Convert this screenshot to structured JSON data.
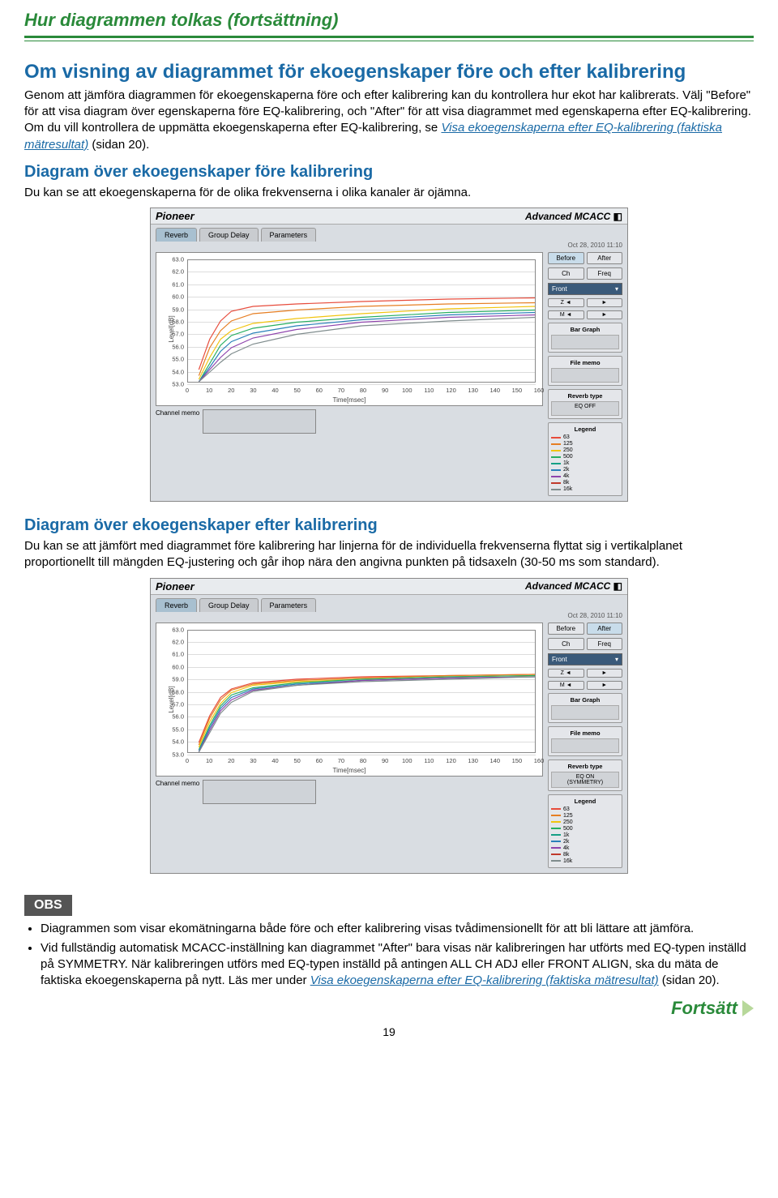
{
  "header": "Hur diagrammen tolkas (fortsättning)",
  "s1": {
    "title": "Om visning av diagrammet för ekoegenskaper före och efter kalibrering",
    "body": "Genom att jämföra diagrammen för ekoegenskaperna före och efter kalibrering kan du kontrollera hur ekot har kalibrerats. Välj \"Before\" för att visa diagram över egenskaperna före EQ-kalibrering, och \"After\" för att visa diagrammet med egenskaperna efter EQ-kalibrering. Om du vill kontrollera de uppmätta ekoegenskaperna efter EQ-kalibrering, se ",
    "link": "Visa ekoegenskaperna efter EQ-kalibrering (faktiska mätresultat)",
    "link_suffix": " (sidan 20)."
  },
  "s2": {
    "title": "Diagram över ekoegenskaper före kalibrering",
    "body": "Du kan se att ekoegenskaperna för de olika frekvenserna i olika kanaler är ojämna."
  },
  "s3": {
    "title": "Diagram över ekoegenskaper efter kalibrering",
    "body": "Du kan se att jämfört med diagrammet före kalibrering har linjerna för de individuella frekvenserna flyttat sig i vertikalplanet proportionellt till mängden EQ-justering och går ihop nära den angivna punkten på tidsaxeln (30-50 ms som standard)."
  },
  "app": {
    "brand": "Pioneer",
    "title_right": "Advanced MCACC",
    "date": "Oct 28, 2010 11:10",
    "tabs": [
      "Reverb",
      "Group Delay",
      "Parameters"
    ],
    "active_tab": 0,
    "buttons": {
      "before": "Before",
      "after": "After",
      "ch": "Ch",
      "freq": "Freq"
    },
    "dropdown": "Front",
    "zoom": {
      "z": "Z",
      "m": "M"
    },
    "bar_graph_label": "Bar Graph",
    "file_memo_label": "File memo",
    "reverb_type_label": "Reverb type",
    "reverb_type_before": "EQ OFF",
    "reverb_type_after": "EQ ON\n(SYMMETRY)",
    "legend_label": "Legend",
    "legend": [
      {
        "label": "63",
        "color": "#e74c3c"
      },
      {
        "label": "125",
        "color": "#e67e22"
      },
      {
        "label": "250",
        "color": "#f1c40f"
      },
      {
        "label": "500",
        "color": "#27ae60"
      },
      {
        "label": "1k",
        "color": "#16a085"
      },
      {
        "label": "2k",
        "color": "#2980b9"
      },
      {
        "label": "4k",
        "color": "#8e44ad"
      },
      {
        "label": "8k",
        "color": "#c0392b"
      },
      {
        "label": "16k",
        "color": "#7f8c8d"
      }
    ],
    "ylabel": "Level[dB]",
    "xlabel": "Time[msec]",
    "yticks": [
      63.0,
      62.0,
      61.0,
      60.0,
      59.0,
      58.0,
      57.0,
      56.0,
      55.0,
      54.0,
      53.0
    ],
    "ylim": [
      53.0,
      63.0
    ],
    "xticks": [
      0,
      10,
      20,
      30,
      40,
      50,
      60,
      70,
      80,
      90,
      100,
      110,
      120,
      130,
      140,
      150,
      160
    ],
    "xlim": [
      0,
      160
    ],
    "channel_memo": "Channel memo",
    "series_before": [
      {
        "color": "#e74c3c",
        "pts": [
          [
            5,
            54
          ],
          [
            10,
            56.5
          ],
          [
            15,
            58.0
          ],
          [
            20,
            58.8
          ],
          [
            30,
            59.2
          ],
          [
            50,
            59.4
          ],
          [
            80,
            59.6
          ],
          [
            120,
            59.8
          ],
          [
            160,
            59.9
          ]
        ]
      },
      {
        "color": "#e67e22",
        "pts": [
          [
            5,
            53.5
          ],
          [
            10,
            55.8
          ],
          [
            15,
            57.2
          ],
          [
            20,
            58.0
          ],
          [
            30,
            58.6
          ],
          [
            50,
            58.9
          ],
          [
            80,
            59.2
          ],
          [
            120,
            59.4
          ],
          [
            160,
            59.5
          ]
        ]
      },
      {
        "color": "#f1c40f",
        "pts": [
          [
            5,
            53.2
          ],
          [
            10,
            55.0
          ],
          [
            15,
            56.5
          ],
          [
            20,
            57.2
          ],
          [
            30,
            57.8
          ],
          [
            50,
            58.2
          ],
          [
            80,
            58.6
          ],
          [
            120,
            59.0
          ],
          [
            160,
            59.2
          ]
        ]
      },
      {
        "color": "#27ae60",
        "pts": [
          [
            5,
            53.0
          ],
          [
            10,
            54.5
          ],
          [
            15,
            56.0
          ],
          [
            20,
            56.8
          ],
          [
            30,
            57.4
          ],
          [
            50,
            57.9
          ],
          [
            80,
            58.3
          ],
          [
            120,
            58.7
          ],
          [
            160,
            58.9
          ]
        ]
      },
      {
        "color": "#2980b9",
        "pts": [
          [
            5,
            53.0
          ],
          [
            10,
            54.2
          ],
          [
            15,
            55.5
          ],
          [
            20,
            56.3
          ],
          [
            30,
            57.0
          ],
          [
            50,
            57.6
          ],
          [
            80,
            58.1
          ],
          [
            120,
            58.5
          ],
          [
            160,
            58.7
          ]
        ]
      },
      {
        "color": "#8e44ad",
        "pts": [
          [
            5,
            53.0
          ],
          [
            10,
            54.0
          ],
          [
            15,
            55.0
          ],
          [
            20,
            55.8
          ],
          [
            30,
            56.6
          ],
          [
            50,
            57.3
          ],
          [
            80,
            57.9
          ],
          [
            120,
            58.3
          ],
          [
            160,
            58.5
          ]
        ]
      },
      {
        "color": "#7f8c8d",
        "pts": [
          [
            5,
            53.0
          ],
          [
            10,
            53.8
          ],
          [
            15,
            54.6
          ],
          [
            20,
            55.3
          ],
          [
            30,
            56.1
          ],
          [
            50,
            56.9
          ],
          [
            80,
            57.6
          ],
          [
            120,
            58.0
          ],
          [
            160,
            58.3
          ]
        ]
      }
    ],
    "series_after": [
      {
        "color": "#e74c3c",
        "pts": [
          [
            5,
            53.8
          ],
          [
            10,
            56.0
          ],
          [
            15,
            57.5
          ],
          [
            20,
            58.2
          ],
          [
            30,
            58.7
          ],
          [
            50,
            59.0
          ],
          [
            80,
            59.2
          ],
          [
            120,
            59.3
          ],
          [
            160,
            59.4
          ]
        ]
      },
      {
        "color": "#e67e22",
        "pts": [
          [
            5,
            53.6
          ],
          [
            10,
            55.8
          ],
          [
            15,
            57.3
          ],
          [
            20,
            58.1
          ],
          [
            30,
            58.6
          ],
          [
            50,
            58.9
          ],
          [
            80,
            59.1
          ],
          [
            120,
            59.3
          ],
          [
            160,
            59.4
          ]
        ]
      },
      {
        "color": "#f1c40f",
        "pts": [
          [
            5,
            53.4
          ],
          [
            10,
            55.5
          ],
          [
            15,
            57.0
          ],
          [
            20,
            57.9
          ],
          [
            30,
            58.5
          ],
          [
            50,
            58.8
          ],
          [
            80,
            59.0
          ],
          [
            120,
            59.2
          ],
          [
            160,
            59.3
          ]
        ]
      },
      {
        "color": "#27ae60",
        "pts": [
          [
            5,
            53.2
          ],
          [
            10,
            55.2
          ],
          [
            15,
            56.8
          ],
          [
            20,
            57.7
          ],
          [
            30,
            58.3
          ],
          [
            50,
            58.7
          ],
          [
            80,
            59.0
          ],
          [
            120,
            59.2
          ],
          [
            160,
            59.3
          ]
        ]
      },
      {
        "color": "#2980b9",
        "pts": [
          [
            5,
            53.1
          ],
          [
            10,
            55.0
          ],
          [
            15,
            56.6
          ],
          [
            20,
            57.5
          ],
          [
            30,
            58.2
          ],
          [
            50,
            58.6
          ],
          [
            80,
            58.9
          ],
          [
            120,
            59.1
          ],
          [
            160,
            59.2
          ]
        ]
      },
      {
        "color": "#8e44ad",
        "pts": [
          [
            5,
            53.0
          ],
          [
            10,
            54.8
          ],
          [
            15,
            56.4
          ],
          [
            20,
            57.3
          ],
          [
            30,
            58.1
          ],
          [
            50,
            58.5
          ],
          [
            80,
            58.9
          ],
          [
            120,
            59.1
          ],
          [
            160,
            59.2
          ]
        ]
      },
      {
        "color": "#7f8c8d",
        "pts": [
          [
            5,
            53.0
          ],
          [
            10,
            54.6
          ],
          [
            15,
            56.2
          ],
          [
            20,
            57.1
          ],
          [
            30,
            58.0
          ],
          [
            50,
            58.5
          ],
          [
            80,
            58.8
          ],
          [
            120,
            59.0
          ],
          [
            160,
            59.2
          ]
        ]
      }
    ]
  },
  "obs": {
    "label": "OBS",
    "items": [
      "Diagrammen som visar ekomätningarna både före och efter kalibrering visas tvådimensionellt för att bli lättare att jämföra.",
      "Vid fullständig automatisk MCACC-inställning kan diagrammet \"After\" bara visas när kalibreringen har utförts med EQ-typen inställd på SYMMETRY. När kalibreringen utförs med EQ-typen inställd på antingen ALL CH ADJ eller FRONT ALIGN, ska du mäta de faktiska ekoegenskaperna på nytt. Läs mer under "
    ],
    "link": "Visa ekoegenskaperna efter EQ-kalibrering (faktiska mätresultat)",
    "link_suffix": " (sidan 20)."
  },
  "continue_label": "Fortsätt",
  "page_number": "19"
}
